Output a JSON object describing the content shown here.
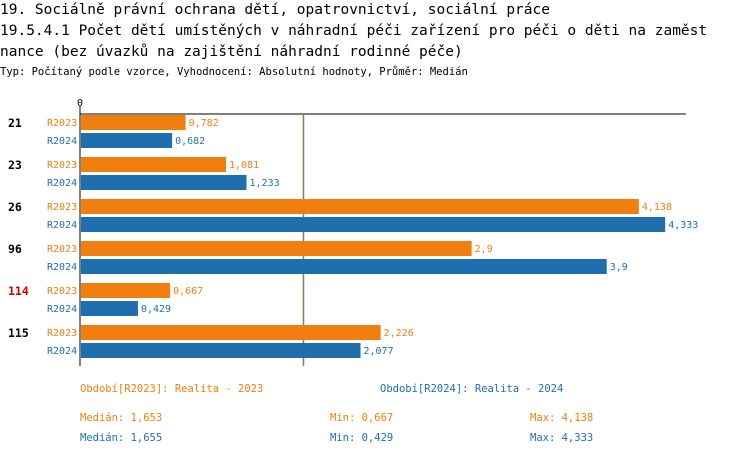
{
  "header": {
    "line1": "19. Sociálně právní ochrana dětí, opatrovnictví, sociální práce",
    "line2": "19.5.4.1 Počet dětí umístěných v náhradní péči zařízení pro péči o děti na zaměst",
    "line3": "nance (bez úvazků na zajištění náhradní rodinné péče)",
    "subtitle": "Typ: Počítaný podle vzorce, Vyhodnocení: Absolutní hodnoty, Průměr: Medián"
  },
  "colors": {
    "r2023": "#f07f0f",
    "r2024": "#1f6fae",
    "highlight": "#cc0000",
    "median_line": "#8a7a5a"
  },
  "chart_data": {
    "type": "bar",
    "orientation": "horizontal",
    "axis_zero_label": "0",
    "xlim": [
      0,
      4.45
    ],
    "median_line": 1.653,
    "categories": [
      {
        "label": "21",
        "highlight": false
      },
      {
        "label": "23",
        "highlight": false
      },
      {
        "label": "26",
        "highlight": false
      },
      {
        "label": "96",
        "highlight": false
      },
      {
        "label": "114",
        "highlight": true
      },
      {
        "label": "115",
        "highlight": false
      }
    ],
    "series": [
      {
        "name": "R2023",
        "values": [
          0.782,
          1.081,
          4.138,
          2.9,
          0.667,
          2.226
        ],
        "labels": [
          "0,782",
          "1,081",
          "4,138",
          "2,9",
          "0,667",
          "2,226"
        ]
      },
      {
        "name": "R2024",
        "values": [
          0.682,
          1.233,
          4.333,
          3.9,
          0.429,
          2.077
        ],
        "labels": [
          "0,682",
          "1,233",
          "4,333",
          "3,9",
          "0,429",
          "2,077"
        ]
      }
    ]
  },
  "legend": {
    "r2023": "Období[R2023]: Realita - 2023",
    "r2024": "Období[R2024]: Realita - 2024"
  },
  "stats": {
    "r2023": {
      "median": "Medián: 1,653",
      "min": "Min: 0,667",
      "max": "Max: 4,138"
    },
    "r2024": {
      "median": "Medián: 1,655",
      "min": "Min: 0,429",
      "max": "Max: 4,333"
    }
  }
}
